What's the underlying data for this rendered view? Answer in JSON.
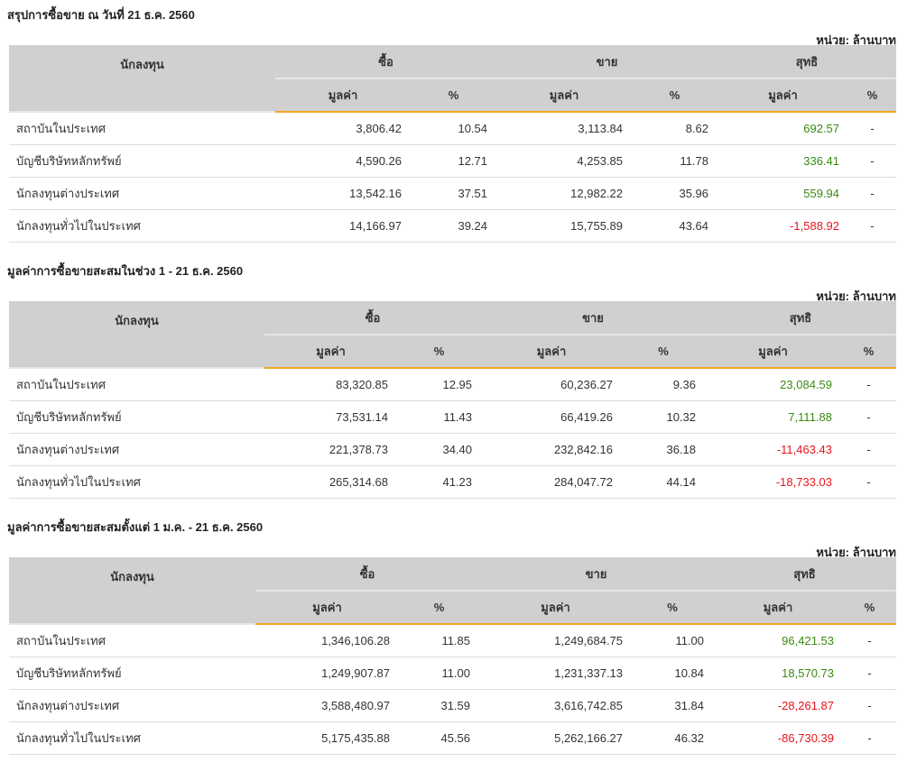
{
  "headers": {
    "investor": "นักลงทุน",
    "buy": "ซื้อ",
    "sell": "ขาย",
    "net": "สุทธิ",
    "value": "มูลค่า",
    "pct": "%"
  },
  "unit_label": "หน่วย: ล้านบาท",
  "colors": {
    "positive": "#3a8a12",
    "negative": "#e8141b",
    "accent": "#f5a623"
  },
  "sections": [
    {
      "title": "สรุปการซื้อขาย ณ วันที่ 21 ธ.ค. 2560",
      "rows": [
        [
          "สถาบันในประเทศ",
          "3,806.42",
          "10.54",
          "3,113.84",
          "8.62",
          "692.57",
          "-"
        ],
        [
          "บัญชีบริษัทหลักทรัพย์",
          "4,590.26",
          "12.71",
          "4,253.85",
          "11.78",
          "336.41",
          "-"
        ],
        [
          "นักลงทุนต่างประเทศ",
          "13,542.16",
          "37.51",
          "12,982.22",
          "35.96",
          "559.94",
          "-"
        ],
        [
          "นักลงทุนทั่วไปในประเทศ",
          "14,166.97",
          "39.24",
          "15,755.89",
          "43.64",
          "-1,588.92",
          "-"
        ]
      ]
    },
    {
      "title": "มูลค่าการซื้อขายสะสมในช่วง 1 - 21 ธ.ค. 2560",
      "rows": [
        [
          "สถาบันในประเทศ",
          "83,320.85",
          "12.95",
          "60,236.27",
          "9.36",
          "23,084.59",
          "-"
        ],
        [
          "บัญชีบริษัทหลักทรัพย์",
          "73,531.14",
          "11.43",
          "66,419.26",
          "10.32",
          "7,111.88",
          "-"
        ],
        [
          "นักลงทุนต่างประเทศ",
          "221,378.73",
          "34.40",
          "232,842.16",
          "36.18",
          "-11,463.43",
          "-"
        ],
        [
          "นักลงทุนทั่วไปในประเทศ",
          "265,314.68",
          "41.23",
          "284,047.72",
          "44.14",
          "-18,733.03",
          "-"
        ]
      ]
    },
    {
      "title": "มูลค่าการซื้อขายสะสมตั้งแต่ 1 ม.ค. - 21 ธ.ค. 2560",
      "rows": [
        [
          "สถาบันในประเทศ",
          "1,346,106.28",
          "11.85",
          "1,249,684.75",
          "11.00",
          "96,421.53",
          "-"
        ],
        [
          "บัญชีบริษัทหลักทรัพย์",
          "1,249,907.87",
          "11.00",
          "1,231,337.13",
          "10.84",
          "18,570.73",
          "-"
        ],
        [
          "นักลงทุนต่างประเทศ",
          "3,588,480.97",
          "31.59",
          "3,616,742.85",
          "31.84",
          "-28,261.87",
          "-"
        ],
        [
          "นักลงทุนทั่วไปในประเทศ",
          "5,175,435.88",
          "45.56",
          "5,262,166.27",
          "46.32",
          "-86,730.39",
          "-"
        ]
      ]
    }
  ]
}
